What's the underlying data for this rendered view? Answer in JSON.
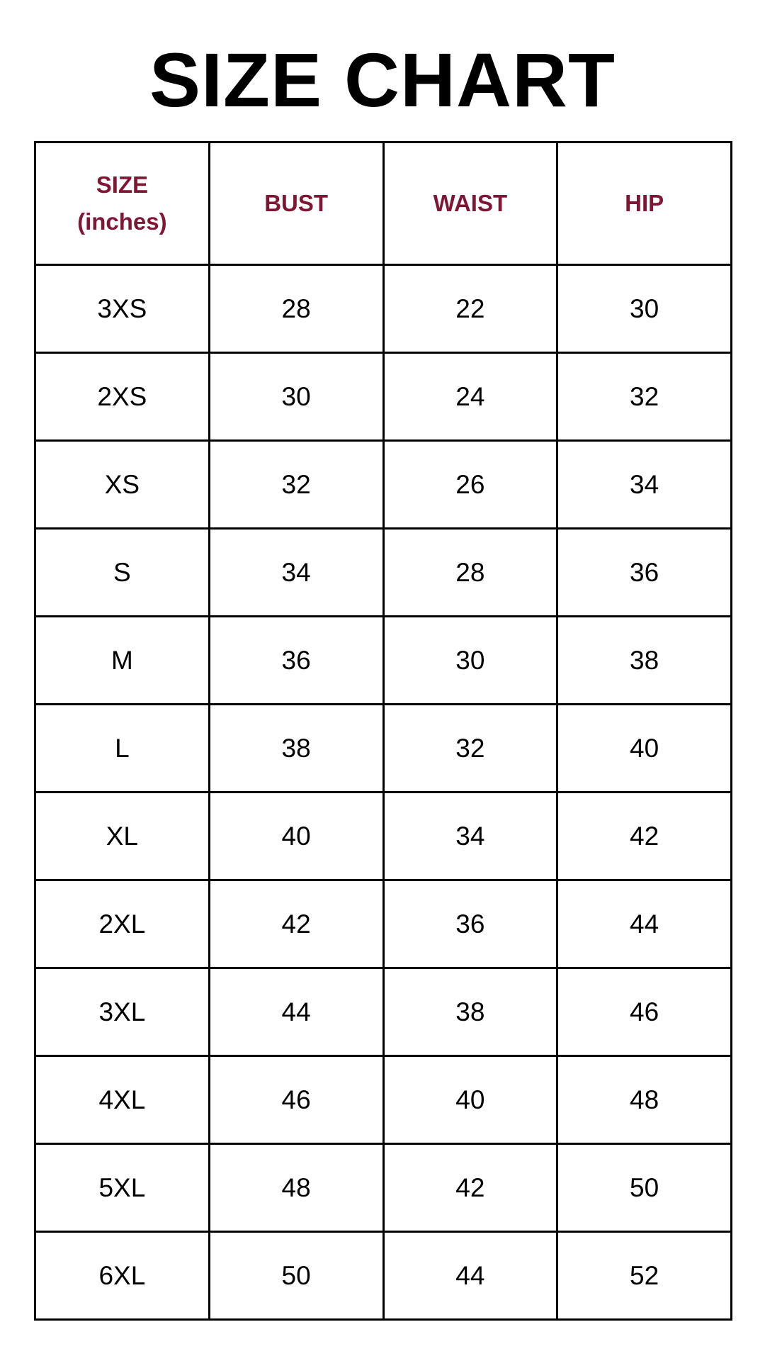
{
  "title": "SIZE CHART",
  "header_color": "#7f1734",
  "columns": [
    {
      "line1": "SIZE",
      "line2": "(inches)"
    },
    {
      "line1": "BUST"
    },
    {
      "line1": "WAIST"
    },
    {
      "line1": "HIP"
    }
  ],
  "rows": [
    [
      "3XS",
      "28",
      "22",
      "30"
    ],
    [
      "2XS",
      "30",
      "24",
      "32"
    ],
    [
      "XS",
      "32",
      "26",
      "34"
    ],
    [
      "S",
      "34",
      "28",
      "36"
    ],
    [
      "M",
      "36",
      "30",
      "38"
    ],
    [
      "L",
      "38",
      "32",
      "40"
    ],
    [
      "XL",
      "40",
      "34",
      "42"
    ],
    [
      "2XL",
      "42",
      "36",
      "44"
    ],
    [
      "3XL",
      "44",
      "38",
      "46"
    ],
    [
      "4XL",
      "46",
      "40",
      "48"
    ],
    [
      "5XL",
      "48",
      "42",
      "50"
    ],
    [
      "6XL",
      "50",
      "44",
      "52"
    ]
  ]
}
